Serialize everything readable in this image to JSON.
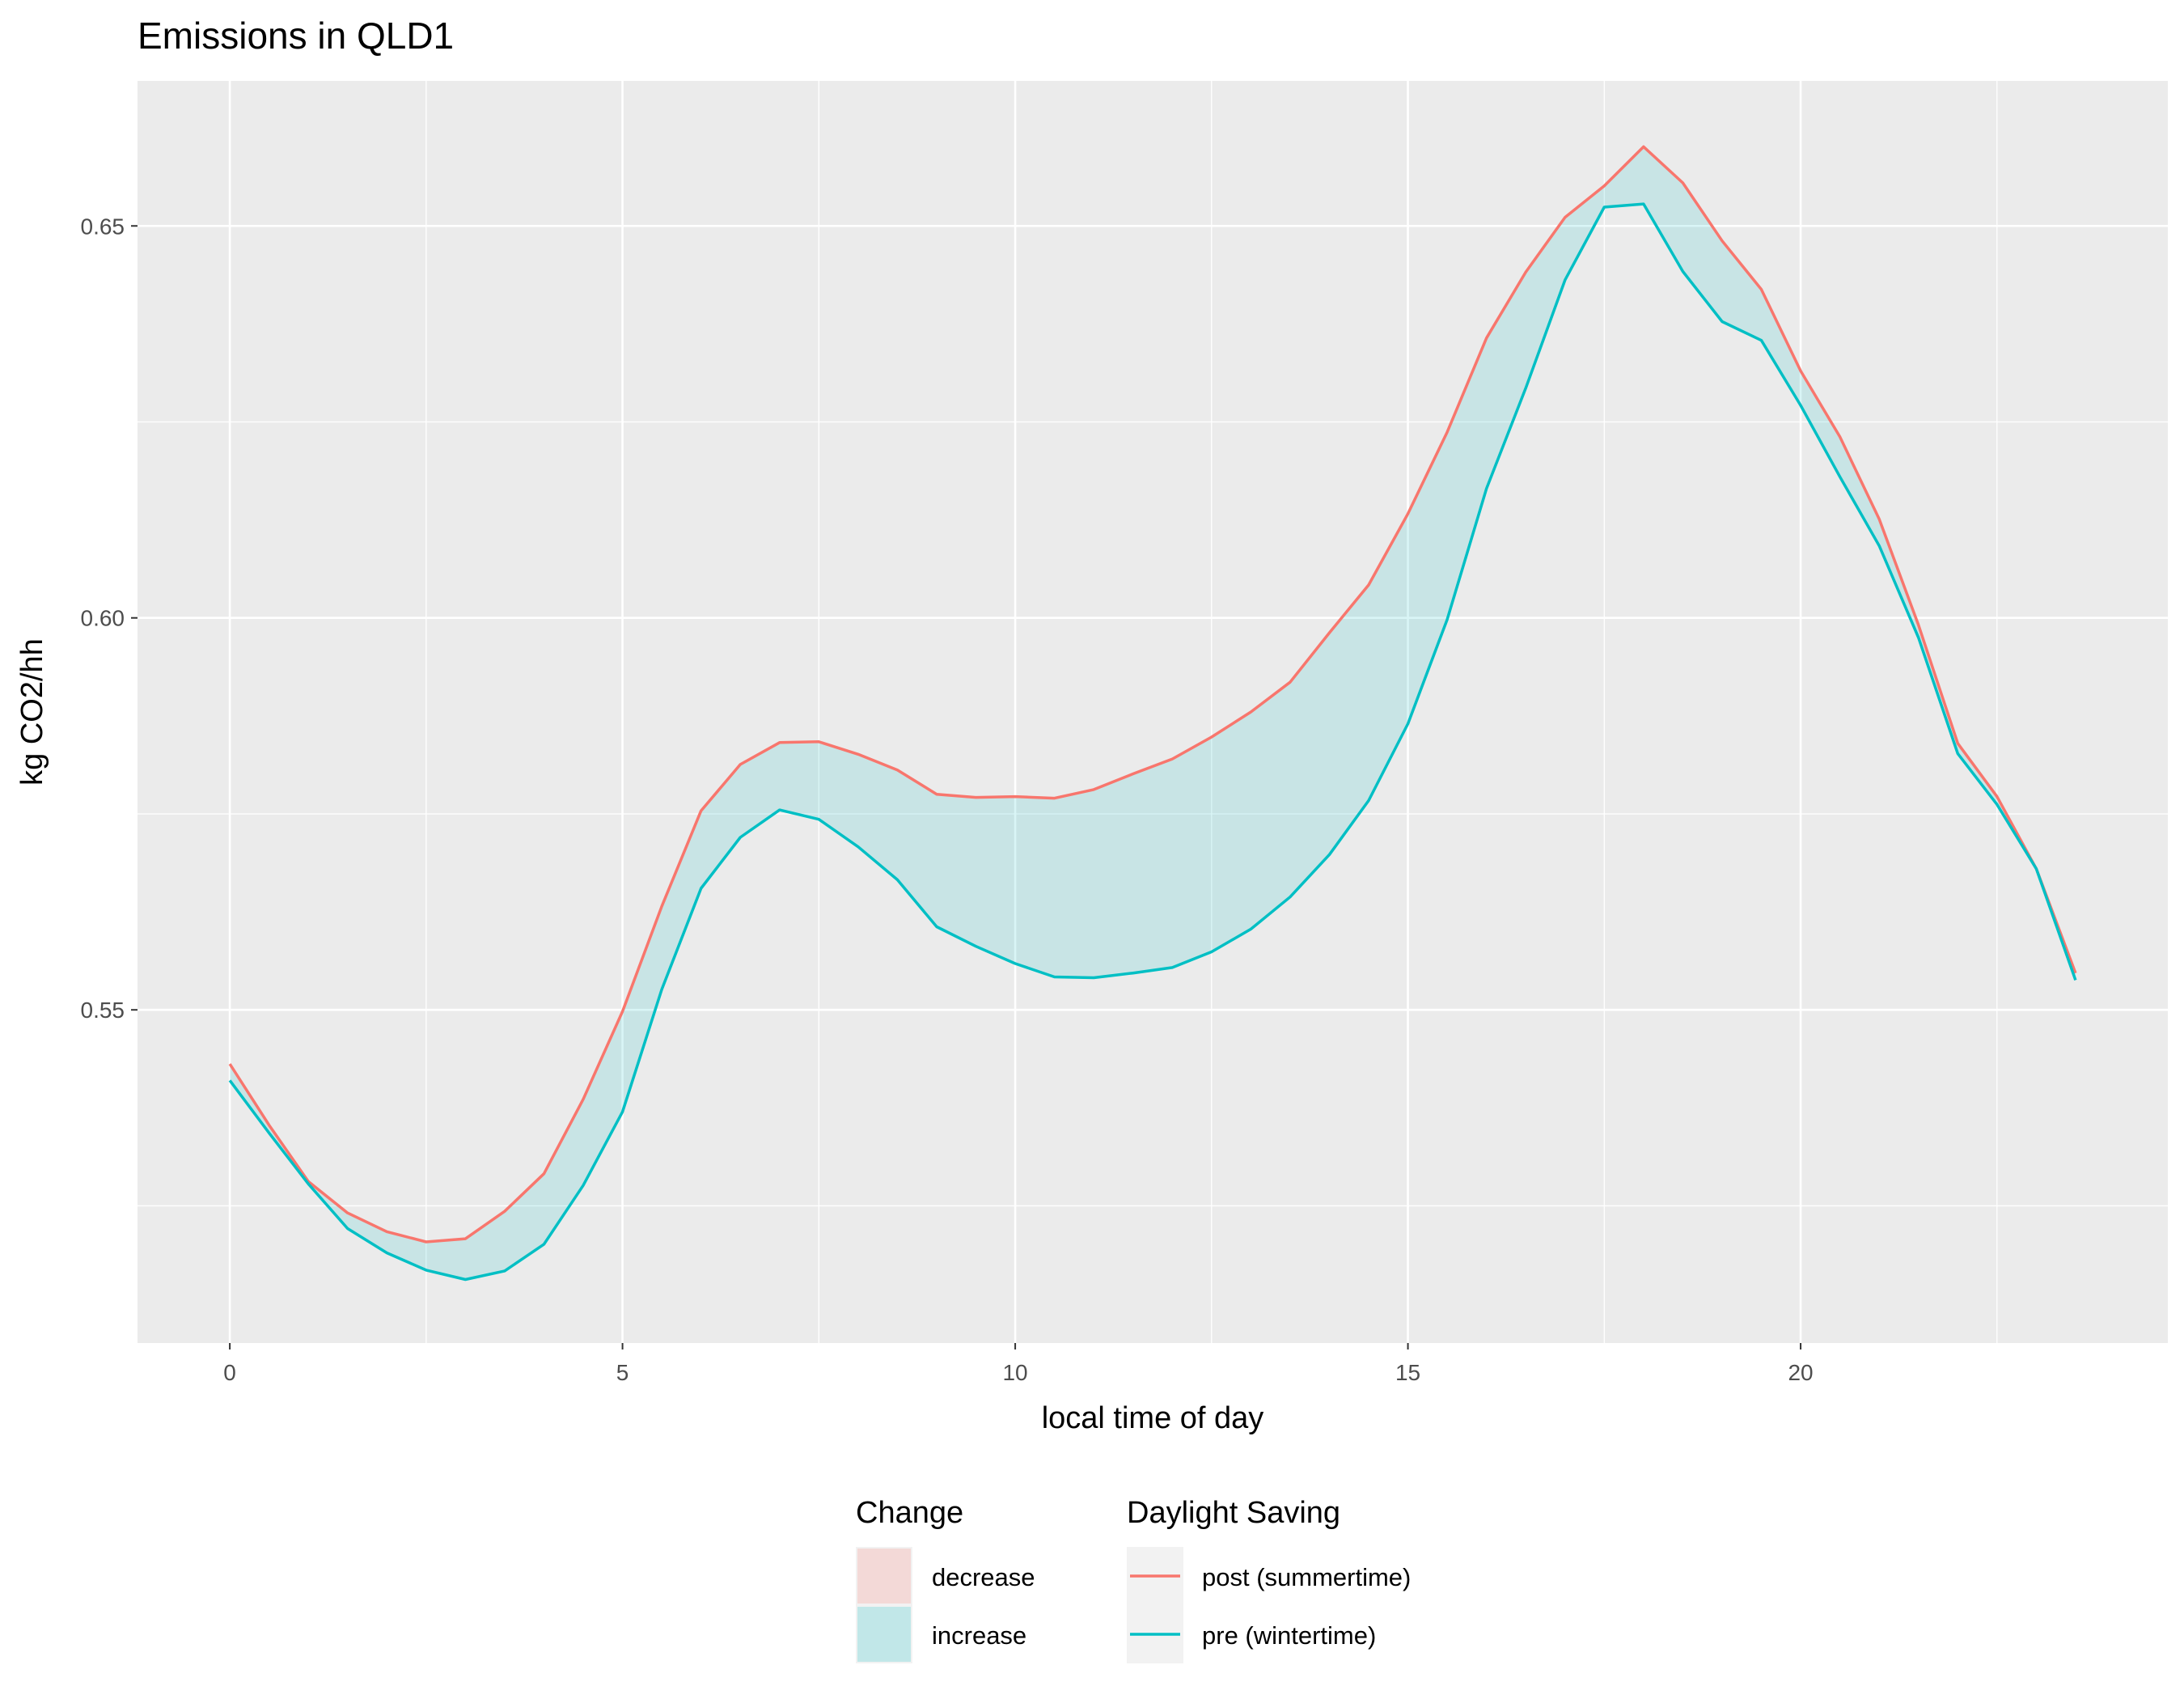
{
  "chart_data": {
    "type": "line",
    "title": "Emissions in QLD1",
    "xlabel": "local time of day",
    "ylabel": "kg CO2/hh",
    "xlim": [
      -1.175,
      24.675
    ],
    "ylim": [
      0.5075,
      0.6685
    ],
    "x_ticks": [
      0,
      5,
      10,
      15,
      20
    ],
    "x_tick_labels": [
      "0",
      "5",
      "10",
      "15",
      "20"
    ],
    "y_ticks": [
      0.55,
      0.6,
      0.65
    ],
    "y_tick_labels": [
      "0.55",
      "0.60",
      "0.65"
    ],
    "grid": true,
    "x": [
      0,
      0.5,
      1,
      1.5,
      2,
      2.5,
      3,
      3.5,
      4,
      4.5,
      5,
      5.5,
      6,
      6.5,
      7,
      7.5,
      8,
      8.5,
      9,
      9.5,
      10,
      10.5,
      11,
      11.5,
      12,
      12.5,
      13,
      13.5,
      14,
      14.5,
      15,
      15.5,
      16,
      16.5,
      17,
      17.5,
      18,
      18.5,
      19,
      19.5,
      20,
      20.5,
      21,
      21.5,
      22,
      22.5,
      23,
      23.5
    ],
    "series": [
      {
        "name": "post (summertime)",
        "color": "#F8766D",
        "values": [
          0.5431,
          0.5353,
          0.5281,
          0.5241,
          0.5217,
          0.5204,
          0.5208,
          0.5243,
          0.5291,
          0.5386,
          0.5498,
          0.5632,
          0.5754,
          0.5813,
          0.5841,
          0.5842,
          0.5826,
          0.5806,
          0.5775,
          0.5771,
          0.5772,
          0.577,
          0.5781,
          0.5801,
          0.582,
          0.5848,
          0.588,
          0.5918,
          0.5981,
          0.6042,
          0.6133,
          0.6237,
          0.6357,
          0.6441,
          0.6511,
          0.6551,
          0.6601,
          0.6555,
          0.6481,
          0.6419,
          0.6315,
          0.6231,
          0.6126,
          0.5991,
          0.584,
          0.5772,
          0.568,
          0.5547
        ]
      },
      {
        "name": "pre (wintertime)",
        "color": "#00BFC4",
        "values": [
          0.541,
          0.5343,
          0.5278,
          0.5221,
          0.519,
          0.5168,
          0.5156,
          0.5167,
          0.5201,
          0.5276,
          0.537,
          0.5526,
          0.5655,
          0.572,
          0.5755,
          0.5743,
          0.5708,
          0.5666,
          0.5606,
          0.5581,
          0.5559,
          0.5542,
          0.5541,
          0.5547,
          0.5554,
          0.5574,
          0.5603,
          0.5644,
          0.5698,
          0.5767,
          0.5865,
          0.5998,
          0.6165,
          0.6293,
          0.6431,
          0.6524,
          0.6528,
          0.6442,
          0.6378,
          0.6354,
          0.6271,
          0.618,
          0.6092,
          0.5975,
          0.5827,
          0.5762,
          0.568,
          0.5538
        ]
      }
    ],
    "fill": {
      "name": "increase",
      "color": "#00BFC4",
      "opacity": 0.15
    },
    "legends": [
      {
        "title": "Change",
        "entries": [
          {
            "label": "decrease",
            "color": "#F8766D"
          },
          {
            "label": "increase",
            "color": "#00BFC4"
          }
        ]
      },
      {
        "title": "Daylight Saving",
        "entries": [
          {
            "label": "post (summertime)",
            "color": "#F8766D"
          },
          {
            "label": "pre (wintertime)",
            "color": "#00BFC4"
          }
        ]
      }
    ],
    "legend_position": "bottom"
  }
}
